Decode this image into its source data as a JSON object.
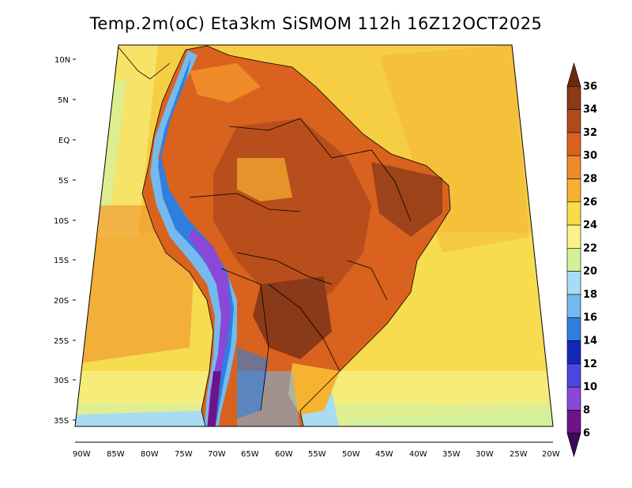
{
  "title": "Temp.2m(oC) Eta3km SiSMOM 112h 16Z12OCT2025",
  "lat_labels": [
    "10N",
    "5N",
    "EQ",
    "5S",
    "10S",
    "15S",
    "20S",
    "25S",
    "30S",
    "35S"
  ],
  "lon_labels": [
    "90W",
    "85W",
    "80W",
    "75W",
    "70W",
    "65W",
    "60W",
    "55W",
    "50W",
    "45W",
    "40W",
    "35W",
    "30W",
    "25W",
    "20W"
  ],
  "colorbar": {
    "labels": [
      "36",
      "34",
      "32",
      "30",
      "28",
      "26",
      "24",
      "22",
      "20",
      "18",
      "16",
      "14",
      "12",
      "10",
      "8",
      "6"
    ],
    "colors": [
      "#6b2a10",
      "#8a3a18",
      "#b04a1a",
      "#d8621e",
      "#ee8a28",
      "#f7b230",
      "#f8dc48",
      "#fbf38a",
      "#d4f09a",
      "#a9dcf4",
      "#74baee",
      "#2f7fe0",
      "#1428b8",
      "#4a48e0",
      "#8a48d8",
      "#6e1488",
      "#3a0c58"
    ]
  },
  "legend_colors": {
    "ocean_warm": "#f4c23a",
    "ocean_mid": "#f7dc50",
    "ocean_cool": "#f8ec78",
    "ocean_cold": "#c8ef98",
    "land_hot": "#d8621e",
    "land_very_hot": "#8a3a18",
    "land_warm": "#ee8a28",
    "andes_cold": "#2f7fe0",
    "andes_very_cold": "#6e1488",
    "south_cold": "#a9dcf4"
  }
}
